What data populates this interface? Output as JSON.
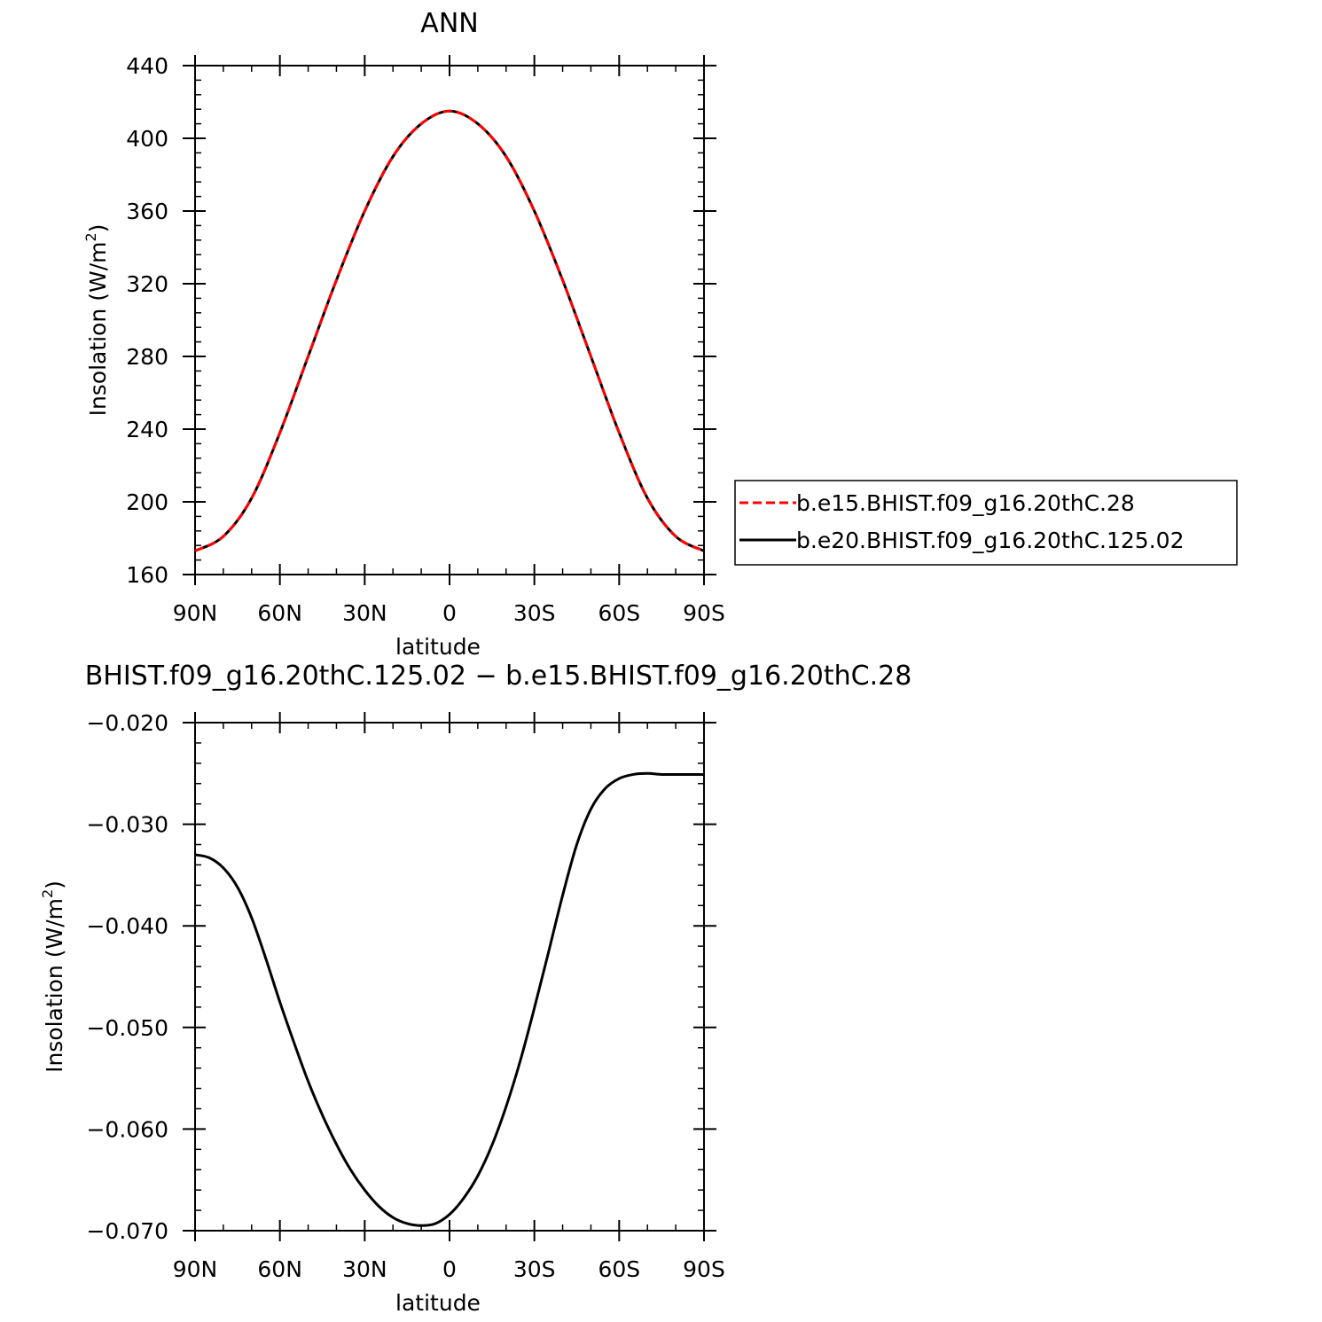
{
  "chart_data": [
    {
      "type": "line",
      "title": "ANN",
      "xlabel": "latitude",
      "ylabel": "Insolation  (W/m",
      "ylabel_sup": "2",
      "ylabel_close": ")",
      "x_tick_values": [
        90,
        60,
        30,
        0,
        -30,
        -60,
        -90
      ],
      "x_tick_labels": [
        "90N",
        "60N",
        "30N",
        "0",
        "30S",
        "60S",
        "90S"
      ],
      "xlim": [
        90,
        -90
      ],
      "ylim": [
        160,
        440
      ],
      "y_ticks": [
        160,
        200,
        240,
        280,
        320,
        360,
        400,
        440
      ],
      "y_tick_labels": [
        "160",
        "200",
        "240",
        "280",
        "320",
        "360",
        "400",
        "440"
      ],
      "y_minor_step": 8,
      "series": [
        {
          "name": "b.e15.BHIST.f09_g16.20thC.28",
          "color": "#ff0000",
          "dash": "dashed",
          "x": [
            90,
            80,
            70,
            60,
            50,
            40,
            30,
            20,
            10,
            0,
            -10,
            -20,
            -30,
            -40,
            -50,
            -60,
            -70,
            -80,
            -90
          ],
          "y": [
            173,
            181,
            202,
            238,
            280,
            322,
            360,
            390,
            408,
            415,
            408,
            390,
            360,
            322,
            280,
            238,
            202,
            181,
            173
          ]
        },
        {
          "name": "b.e20.BHIST.f09_g16.20thC.125.02",
          "color": "#000000",
          "dash": "solid",
          "x": [
            90,
            80,
            70,
            60,
            50,
            40,
            30,
            20,
            10,
            0,
            -10,
            -20,
            -30,
            -40,
            -50,
            -60,
            -70,
            -80,
            -90
          ],
          "y": [
            173,
            181,
            202,
            238,
            280,
            322,
            360,
            390,
            408,
            415,
            408,
            390,
            360,
            322,
            280,
            238,
            202,
            181,
            173
          ]
        }
      ]
    },
    {
      "type": "line",
      "title": "BHIST.f09_g16.20thC.125.02 − b.e15.BHIST.f09_g16.20thC.28",
      "xlabel": "latitude",
      "ylabel": "Insolation  (W/m",
      "ylabel_sup": "2",
      "ylabel_close": ")",
      "x_tick_values": [
        90,
        60,
        30,
        0,
        -30,
        -60,
        -90
      ],
      "x_tick_labels": [
        "90N",
        "60N",
        "30N",
        "0",
        "30S",
        "60S",
        "90S"
      ],
      "xlim": [
        90,
        -90
      ],
      "ylim": [
        -0.07,
        -0.02
      ],
      "y_ticks": [
        -0.07,
        -0.06,
        -0.05,
        -0.04,
        -0.03,
        -0.02
      ],
      "y_tick_labels": [
        "−0.070",
        "−0.060",
        "−0.050",
        "−0.040",
        "−0.030",
        "−0.020"
      ],
      "y_minor_step": 0.002,
      "series": [
        {
          "color": "#000000",
          "dash": "solid",
          "x": [
            90,
            85,
            80,
            75,
            70,
            65,
            60,
            55,
            50,
            45,
            40,
            35,
            30,
            25,
            20,
            15,
            10,
            5,
            0,
            -5,
            -10,
            -15,
            -20,
            -25,
            -30,
            -35,
            -40,
            -45,
            -50,
            -55,
            -60,
            -65,
            -70,
            -75,
            -80,
            -85,
            -90
          ],
          "y": [
            -0.033,
            -0.0333,
            -0.0343,
            -0.0362,
            -0.0392,
            -0.0432,
            -0.0475,
            -0.0515,
            -0.0553,
            -0.0586,
            -0.0615,
            -0.064,
            -0.066,
            -0.0676,
            -0.0687,
            -0.0693,
            -0.0695,
            -0.0693,
            -0.0684,
            -0.0668,
            -0.0646,
            -0.0616,
            -0.0578,
            -0.0533,
            -0.0481,
            -0.0426,
            -0.037,
            -0.032,
            -0.0285,
            -0.0265,
            -0.0255,
            -0.0251,
            -0.025,
            -0.0251,
            -0.0251,
            -0.0251,
            -0.0251
          ]
        }
      ]
    }
  ],
  "legend": {
    "items": [
      {
        "label": "b.e15.BHIST.f09_g16.20thC.28",
        "color": "#ff0000",
        "dash": "dashed"
      },
      {
        "label": "b.e20.BHIST.f09_g16.20thC.125.02",
        "color": "#000000",
        "dash": "solid"
      }
    ]
  }
}
